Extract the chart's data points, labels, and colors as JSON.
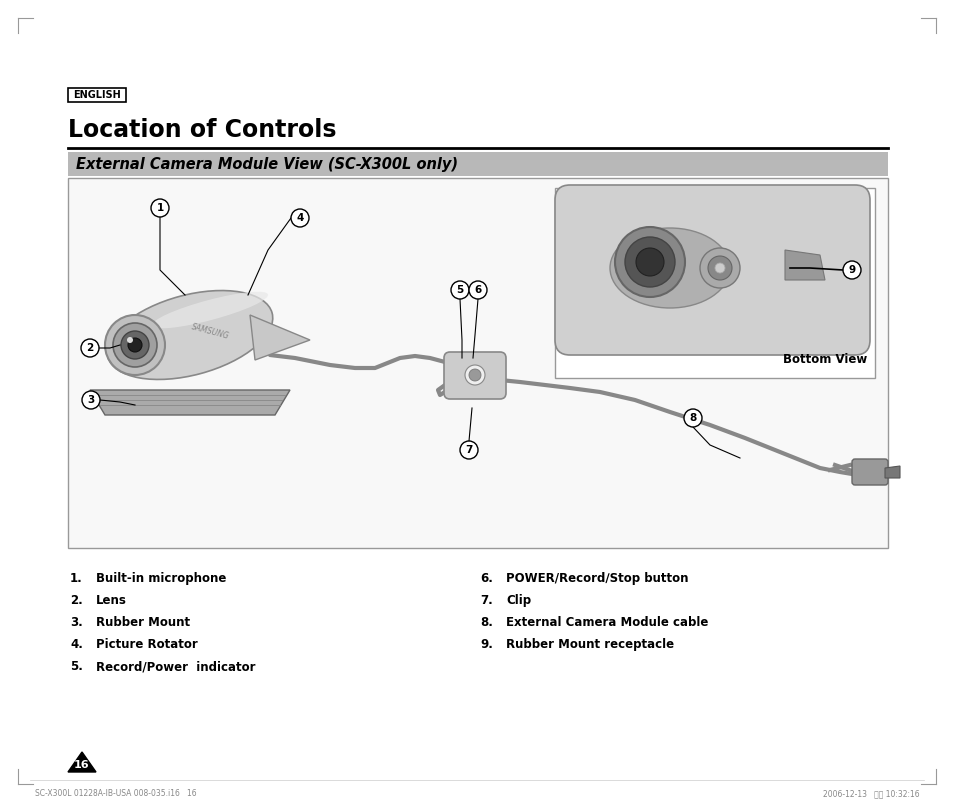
{
  "page_bg": "#ffffff",
  "english_label": "ENGLISH",
  "title": "Location of Controls",
  "subtitle": "External Camera Module View (SC-X300L only)",
  "subtitle_bg": "#b8b8b8",
  "diagram_bg": "#f8f8f8",
  "items_left": [
    [
      "1.",
      "Built-in microphone"
    ],
    [
      "2.",
      "Lens"
    ],
    [
      "3.",
      "Rubber Mount"
    ],
    [
      "4.",
      "Picture Rotator"
    ],
    [
      "5.",
      "Record/Power  indicator"
    ]
  ],
  "items_right": [
    [
      "6.",
      "POWER/Record∕Stop button"
    ],
    [
      "7.",
      "Clip"
    ],
    [
      "8.",
      "External Camera Module cable"
    ],
    [
      "9.",
      "Rubber Mount receptacle"
    ]
  ],
  "bottom_view_label": "Bottom View",
  "page_number": "16",
  "footer_left": "SC-X300L 01228A-IB-USA 008-035.i16   16",
  "footer_right": "2006-12-13   오전 10:32:16"
}
